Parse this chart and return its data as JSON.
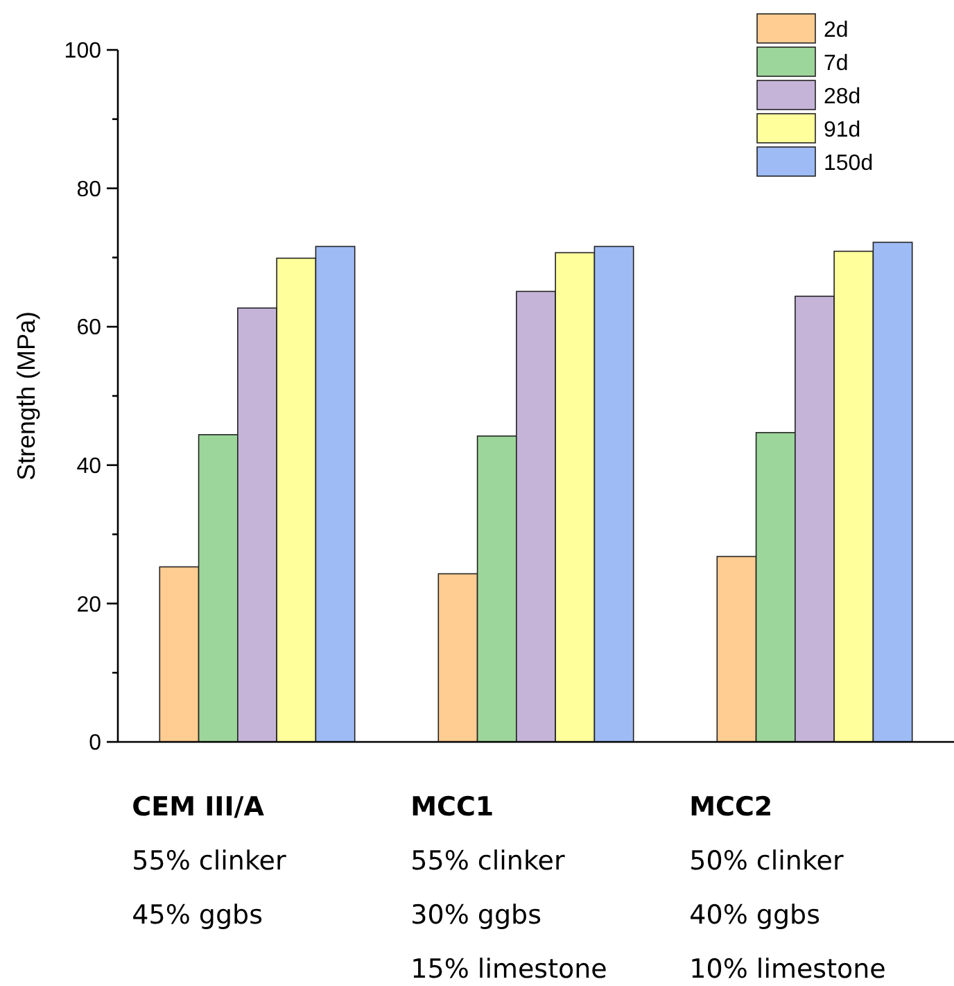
{
  "chart_data": {
    "type": "bar",
    "ylabel": "Strength (MPa)",
    "categories": [
      "CEM III/A\n55% clinker\n45% ggbs",
      "MCC1\n55% clinker\n30% ggbs\n15% limestone",
      "MCC2\n50% clinker\n40% ggbs\n10% limestone"
    ],
    "series": [
      {
        "name": "2d",
        "color": "#ffcc91",
        "values": [
          25.3,
          24.3,
          26.8
        ]
      },
      {
        "name": "7d",
        "color": "#9dd69a",
        "values": [
          44.4,
          44.2,
          44.7
        ]
      },
      {
        "name": "28d",
        "color": "#c5b4d8",
        "values": [
          62.7,
          65.1,
          64.4
        ]
      },
      {
        "name": "91d",
        "color": "#ffff9c",
        "values": [
          69.9,
          70.7,
          70.9
        ]
      },
      {
        "name": "150d",
        "color": "#9ebbf5",
        "values": [
          71.6,
          71.6,
          72.2
        ]
      }
    ],
    "ylim": [
      0,
      100
    ],
    "yticks": [
      0,
      {
        "value": 10,
        "label": null
      },
      20,
      {
        "value": 30,
        "label": null
      },
      40,
      {
        "value": 50,
        "label": null
      },
      60,
      {
        "value": 70,
        "label": null
      },
      80,
      {
        "value": 90,
        "label": null
      },
      100
    ],
    "grid": false,
    "legend": "top right"
  }
}
